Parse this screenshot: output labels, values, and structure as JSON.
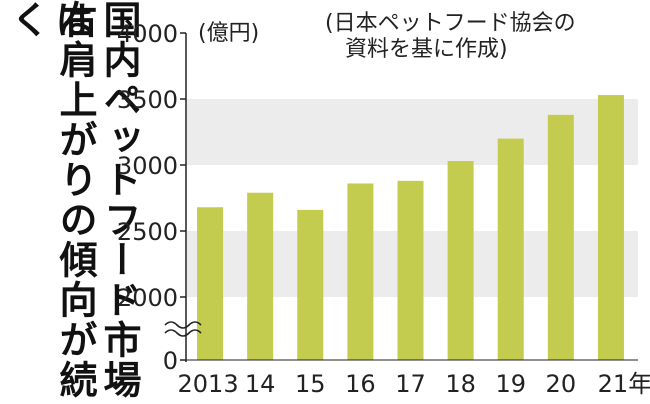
{
  "headline": {
    "line1": "国内ペットフード市場は",
    "line2": "右肩上がりの傾向が続く"
  },
  "chart_data": {
    "type": "bar",
    "unit_label": "(億円)",
    "source_line1": "(日本ペットフード協会の",
    "source_line2": "資料を基に作成)",
    "categories": [
      "2013",
      "14",
      "15",
      "16",
      "17",
      "18",
      "19",
      "20",
      "21年"
    ],
    "values": [
      2680,
      2790,
      2660,
      2860,
      2880,
      3030,
      3200,
      3380,
      3530
    ],
    "y_ticks": [
      "0",
      "2000",
      "2500",
      "3000",
      "3500",
      "4000"
    ],
    "ylim": [
      2000,
      4000
    ],
    "axis_break": true,
    "bar_color": "#c3cc4f",
    "band_color": "#ececec",
    "grid": true
  }
}
